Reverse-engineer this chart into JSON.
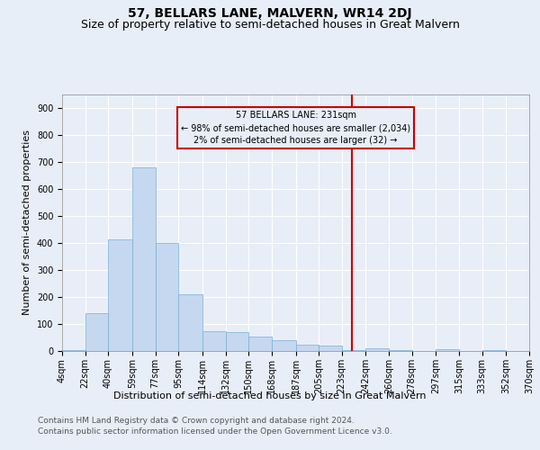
{
  "title": "57, BELLARS LANE, MALVERN, WR14 2DJ",
  "subtitle": "Size of property relative to semi-detached houses in Great Malvern",
  "xlabel": "Distribution of semi-detached houses by size in Great Malvern",
  "ylabel": "Number of semi-detached properties",
  "bar_color": "#c5d8ef",
  "bar_edge_color": "#7aafd4",
  "annotation_title": "57 BELLARS LANE: 231sqm",
  "annotation_line1": "← 98% of semi-detached houses are smaller (2,034)",
  "annotation_line2": "2% of semi-detached houses are larger (32) →",
  "property_line_x": 231,
  "footer1": "Contains HM Land Registry data © Crown copyright and database right 2024.",
  "footer2": "Contains public sector information licensed under the Open Government Licence v3.0.",
  "bin_edges": [
    4,
    22,
    40,
    59,
    77,
    95,
    114,
    132,
    150,
    168,
    187,
    205,
    223,
    242,
    260,
    278,
    297,
    315,
    333,
    352,
    370
  ],
  "bar_heights": [
    5,
    140,
    415,
    680,
    400,
    210,
    75,
    70,
    55,
    40,
    25,
    20,
    5,
    10,
    5,
    0,
    8,
    0,
    5,
    0
  ],
  "ylim": [
    0,
    950
  ],
  "yticks": [
    0,
    100,
    200,
    300,
    400,
    500,
    600,
    700,
    800,
    900
  ],
  "background_color": "#e8eef8",
  "grid_color": "#ffffff",
  "annotation_box_edge_color": "#cc0000",
  "property_line_color": "#cc0000",
  "title_fontsize": 10,
  "subtitle_fontsize": 9,
  "axis_label_fontsize": 8,
  "tick_fontsize": 7,
  "footer_fontsize": 6.5
}
